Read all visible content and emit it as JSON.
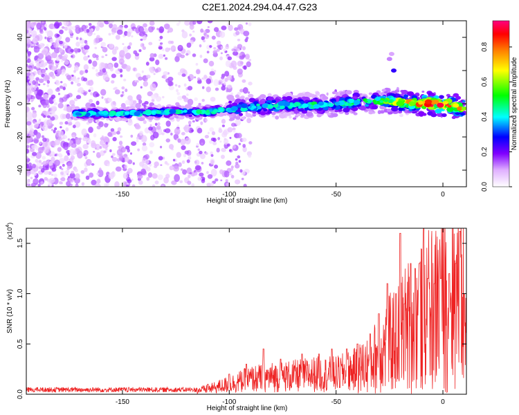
{
  "title": "C2E1.2024.294.04.47.G23",
  "chart_data": [
    {
      "type": "heatmap",
      "xlabel": "Height of straight line (km)",
      "ylabel": "Frequency (Hz)",
      "xlim": [
        -195,
        11
      ],
      "ylim": [
        -50,
        50
      ],
      "x_ticks": [
        -150,
        -100,
        -50,
        0
      ],
      "y_ticks": [
        -40,
        -20,
        0,
        20,
        40
      ],
      "colorbar": {
        "label": "Normalized spectral amplitude",
        "range": [
          0.0,
          0.95
        ],
        "ticks": [
          "0.0",
          "0.2",
          "0.4",
          "0.6",
          "0.8"
        ],
        "colors": [
          "#ffffff",
          "#e0b0ff",
          "#8000ff",
          "#0000ff",
          "#00ffff",
          "#00ff00",
          "#ffff00",
          "#ff8000",
          "#ff0000",
          "#ff0080"
        ]
      },
      "ridge": {
        "description_x": [
          -170,
          -150,
          -130,
          -110,
          -100,
          -90,
          -80,
          -70,
          -60,
          -50,
          -40,
          -30,
          -20,
          -10,
          0,
          10
        ],
        "description_y": [
          -6,
          -6,
          -5,
          -5,
          -3,
          -2,
          -1,
          -1,
          -1,
          0,
          1,
          2,
          1,
          0,
          0,
          -3
        ],
        "peak_amplitude_x": [
          -170,
          -150,
          -130,
          -110,
          -100,
          -90,
          -80,
          -70,
          -60,
          -50,
          -40,
          -30,
          -20,
          -10,
          0,
          10
        ],
        "peak_amplitude_y": [
          0.45,
          0.45,
          0.45,
          0.5,
          0.45,
          0.45,
          0.5,
          0.45,
          0.5,
          0.5,
          0.5,
          0.55,
          0.7,
          0.9,
          0.95,
          0.8
        ]
      }
    },
    {
      "type": "line",
      "xlabel": "Height of straight line (km)",
      "ylabel": "SNR (10 * v/v)",
      "y_multiplier": "(x10",
      "y_multiplier_exp": "4",
      "xlim": [
        -195,
        11
      ],
      "ylim": [
        0,
        1.65
      ],
      "x_ticks": [
        -150,
        -100,
        -50,
        0
      ],
      "y_ticks": [
        "0.0",
        "0.5",
        "1.0",
        "1.5"
      ],
      "series": [
        {
          "color": "#ee2222",
          "x": [
            -195,
            -180,
            -160,
            -140,
            -120,
            -110,
            -100,
            -90,
            -80,
            -70,
            -60,
            -50,
            -40,
            -35,
            -30,
            -25,
            -20,
            -15,
            -10,
            -5,
            0,
            5,
            8,
            11
          ],
          "y": [
            0.03,
            0.03,
            0.03,
            0.03,
            0.03,
            0.05,
            0.1,
            0.15,
            0.17,
            0.18,
            0.2,
            0.2,
            0.25,
            0.3,
            0.4,
            0.5,
            0.6,
            0.7,
            0.75,
            0.85,
            0.95,
            1.0,
            1.0,
            0.85
          ],
          "peaks_x": [
            -110,
            -100,
            -92,
            -84,
            -76,
            -66,
            -58,
            -52,
            -45,
            -40,
            -34,
            -30,
            -26,
            -22,
            -20,
            -18,
            -15,
            -13,
            -11,
            -9,
            -7,
            -4,
            -1,
            3,
            6,
            8,
            10
          ],
          "peaks_y": [
            0.1,
            0.2,
            0.3,
            0.45,
            0.35,
            0.4,
            0.4,
            0.45,
            0.45,
            0.5,
            0.6,
            0.8,
            1.1,
            1.0,
            1.6,
            0.9,
            1.3,
            1.25,
            1.3,
            1.65,
            1.15,
            1.1,
            1.15,
            1.2,
            1.3,
            1.62,
            1.0
          ]
        }
      ]
    }
  ]
}
